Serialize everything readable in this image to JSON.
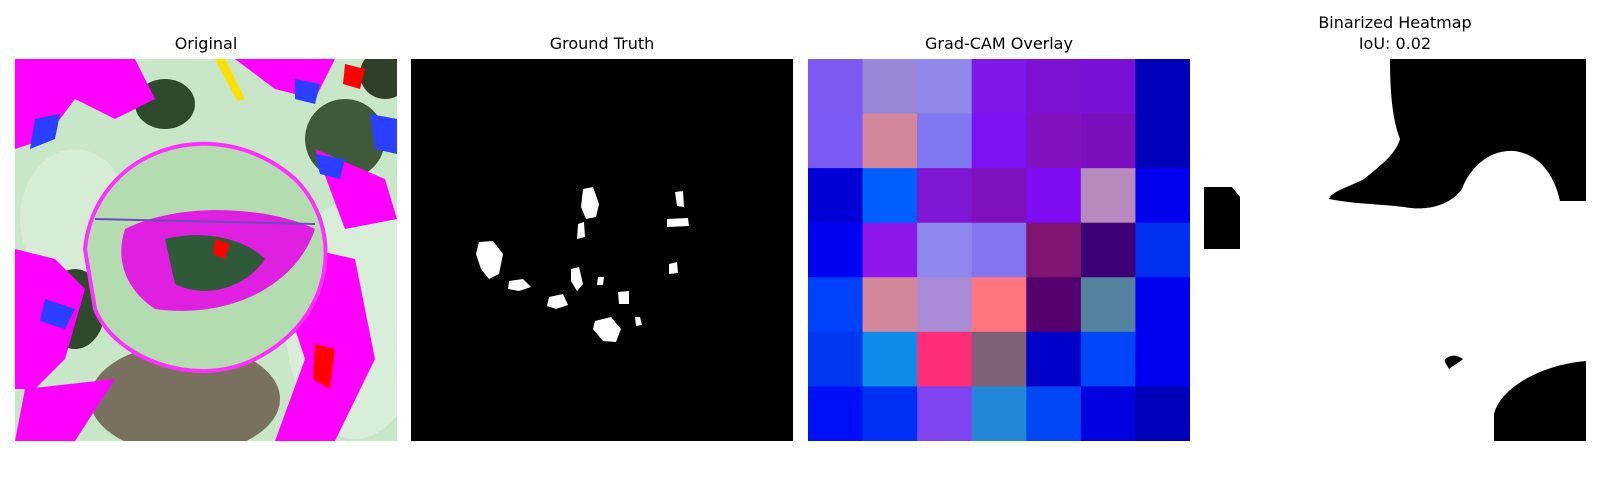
{
  "figure": {
    "panels": [
      {
        "title": "Original"
      },
      {
        "title": "Ground Truth"
      },
      {
        "title": "Grad-CAM Overlay"
      },
      {
        "title": "Binarized Heatmap",
        "subtitle": "IoU: 0.02"
      }
    ]
  },
  "gradcam_grid": {
    "rows": 7,
    "cols": 7,
    "colors": [
      [
        "#7d59f2",
        "#9a86d9",
        "#9088e6",
        "#7f16ea",
        "#7f11d2",
        "#7a10d8",
        "#0000b8"
      ],
      [
        "#7d59f4",
        "#d5869a",
        "#7f78f2",
        "#7f10f4",
        "#8211bf",
        "#7b0fbd",
        "#0000b8"
      ],
      [
        "#0000d6",
        "#0060ff",
        "#7e16d4",
        "#7f10bd",
        "#7f0cf3",
        "#b889bc",
        "#0000ee"
      ],
      [
        "#0000f2",
        "#8e18ec",
        "#8e88ee",
        "#8275ee",
        "#7f1570",
        "#3d0077",
        "#0030f0"
      ],
      [
        "#0040ff",
        "#d4869a",
        "#a98ad4",
        "#ff747d",
        "#54006f",
        "#54839f",
        "#0000f0"
      ],
      [
        "#0038f0",
        "#0b8cea",
        "#ff2d78",
        "#7f6177",
        "#0000c9",
        "#0046f8",
        "#0000f0"
      ],
      [
        "#0010f6",
        "#0030f8",
        "#7e44ef",
        "#2488d8",
        "#0046f5",
        "#0000e0",
        "#0000b8"
      ]
    ]
  },
  "overall_iou": 0.02
}
